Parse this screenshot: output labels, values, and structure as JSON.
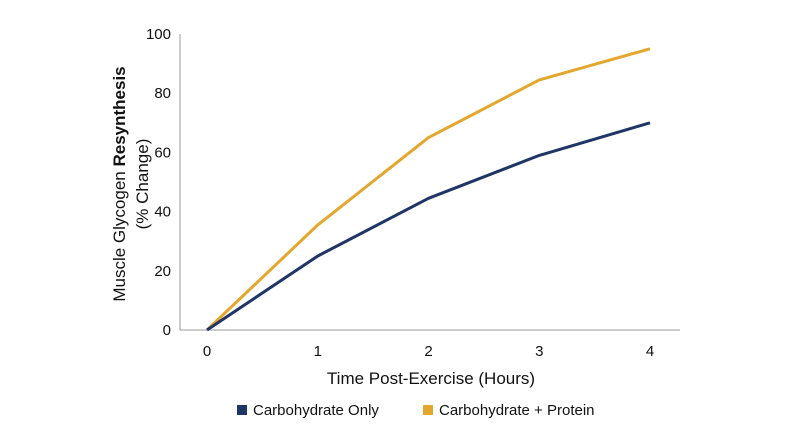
{
  "chart_data": {
    "type": "line",
    "title": "",
    "xlabel": "Time Post-Exercise (Hours)",
    "ylabel_prefix": "Muscle Glycogen ",
    "ylabel_bold": "Resynthesis",
    "ylabel_line2": "(% Change)",
    "x": [
      0,
      1,
      2,
      3,
      4
    ],
    "x_ticks": [
      "0",
      "1",
      "2",
      "3",
      "4"
    ],
    "y_ticks": [
      "0",
      "20",
      "40",
      "60",
      "80",
      "100"
    ],
    "ylim": [
      0,
      100
    ],
    "xlim": [
      0,
      4
    ],
    "grid": false,
    "legend_position": "bottom",
    "series": [
      {
        "name": "Carbohydrate Only",
        "color": "#1f3566",
        "values": [
          0,
          25,
          44.5,
          59,
          70
        ]
      },
      {
        "name": "Carbohydrate + Protein",
        "color": "#e4a72e",
        "values": [
          0,
          35.5,
          65,
          84.5,
          95
        ]
      }
    ]
  }
}
